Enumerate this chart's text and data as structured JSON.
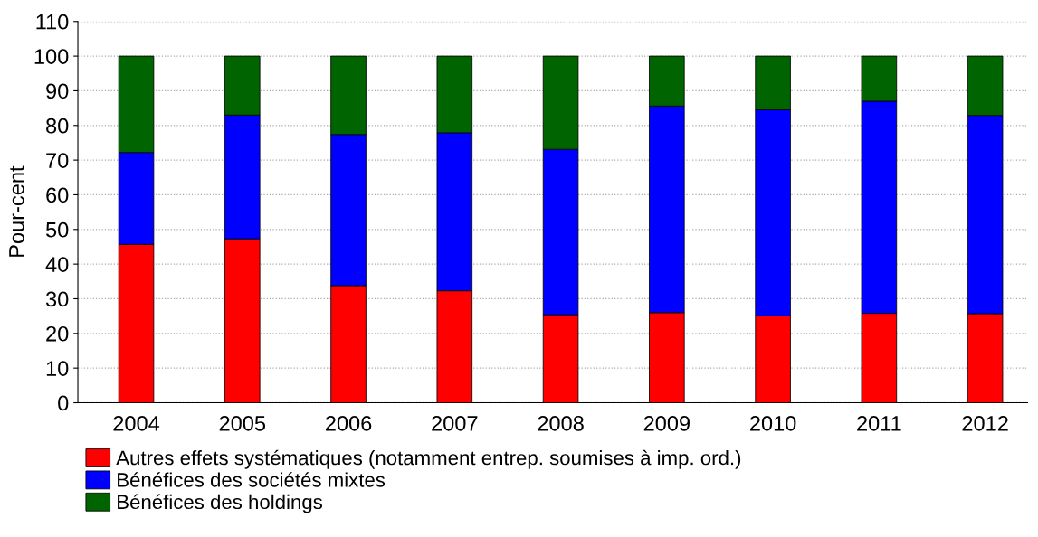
{
  "chart_data": {
    "type": "bar",
    "ylabel": "Pour-cent",
    "stacked": true,
    "categories": [
      "2004",
      "2005",
      "2006",
      "2007",
      "2008",
      "2009",
      "2010",
      "2011",
      "2012"
    ],
    "series": [
      {
        "name": "Autres effets systématiques (notamment entrep. soumises à imp. ord.)",
        "color": "#ff0000",
        "values": [
          45.7,
          47.3,
          33.8,
          32.3,
          25.4,
          26.0,
          25.1,
          25.8,
          25.7
        ]
      },
      {
        "name": "Bénéfices des sociétés mixtes",
        "color": "#0000ff",
        "values": [
          26.5,
          35.7,
          43.6,
          45.6,
          47.7,
          59.6,
          59.4,
          61.2,
          57.2
        ]
      },
      {
        "name": "Bénéfices des holdings",
        "color": "#006400",
        "values": [
          27.8,
          17.0,
          22.6,
          22.1,
          26.9,
          14.4,
          15.5,
          13.0,
          17.1
        ]
      }
    ],
    "ylim": [
      0,
      110
    ],
    "yticks": [
      0,
      10,
      20,
      30,
      40,
      50,
      60,
      70,
      80,
      90,
      100,
      110
    ],
    "grid": "y",
    "legend": "bottom"
  }
}
